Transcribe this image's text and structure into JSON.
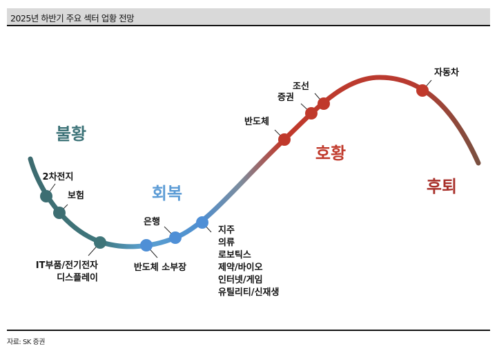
{
  "header": {
    "title": "2025년 하반기 주요 섹터 업황 전망"
  },
  "phases": [
    {
      "label": "불황",
      "color": "#3d7378"
    },
    {
      "label": "회복",
      "color": "#5b9bd5"
    },
    {
      "label": "호황",
      "color": "#c0392b"
    },
    {
      "label": "후퇴",
      "color": "#a8302a"
    }
  ],
  "points": [
    {
      "lines": [
        "2차전지"
      ]
    },
    {
      "lines": [
        "보험"
      ]
    },
    {
      "lines": [
        "IT부품/전기전자",
        "디스플레이"
      ]
    },
    {
      "lines": [
        "반도체 소부장"
      ]
    },
    {
      "lines": [
        "은행"
      ]
    },
    {
      "lines": [
        "지주",
        "의류",
        "로보틱스",
        "제약/바이오",
        "인터넷/게임",
        "유틸리티/신재생"
      ]
    },
    {
      "lines": [
        "반도체"
      ]
    },
    {
      "lines": [
        "증권"
      ]
    },
    {
      "lines": [
        "조선"
      ]
    },
    {
      "lines": [
        "자동차"
      ]
    }
  ],
  "colors": {
    "teal": "#3d6b6f",
    "blue": "#5b9bd5",
    "red": "#c0392b",
    "brown": "#7a5040"
  },
  "footer": {
    "source": "자료: SK 증권"
  }
}
